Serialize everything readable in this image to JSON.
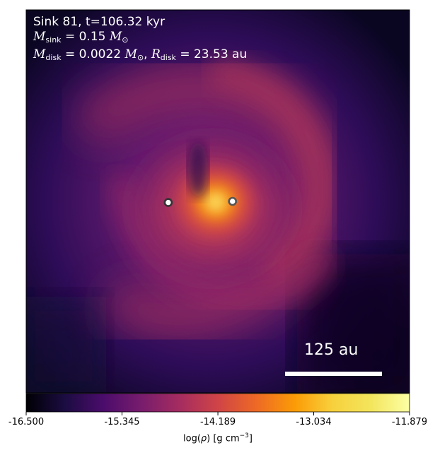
{
  "chart_data": {
    "type": "heatmap",
    "title_lines": {
      "sink_line": "Sink 81, t=106.32 kyr",
      "m_sink_symbol": "M",
      "m_sink_sub": "sink",
      "m_sink_value": "= 0.15",
      "m_unit": "M",
      "m_unit_sub": "⊙",
      "m_disk_symbol": "M",
      "m_disk_sub": "disk",
      "m_disk_value": "= 0.0022",
      "r_disk_symbol": "R",
      "r_disk_sub": "disk",
      "r_disk_value": "= 23.53 au"
    },
    "scale_bar": {
      "label": "125 au",
      "length_au": 125
    },
    "colorbar": {
      "colormap": "inferno",
      "vmin": -16.5,
      "vmax": -11.879,
      "ticks": [
        "-16.500",
        "-15.345",
        "-14.189",
        "-13.034",
        "-11.879"
      ],
      "label_prefix": "log(",
      "label_rho": "ρ",
      "label_mid": ") [g cm",
      "label_exp": "−3",
      "label_end": "]"
    },
    "sinks": [
      {
        "name": "sink-81",
        "x_au": 13,
        "y_au": 0,
        "ring_color": "#555555"
      },
      {
        "name": "companion-sink",
        "x_au": -44,
        "y_au": -1,
        "ring_color": "#333333"
      }
    ],
    "frame_extent_au": 340
  }
}
